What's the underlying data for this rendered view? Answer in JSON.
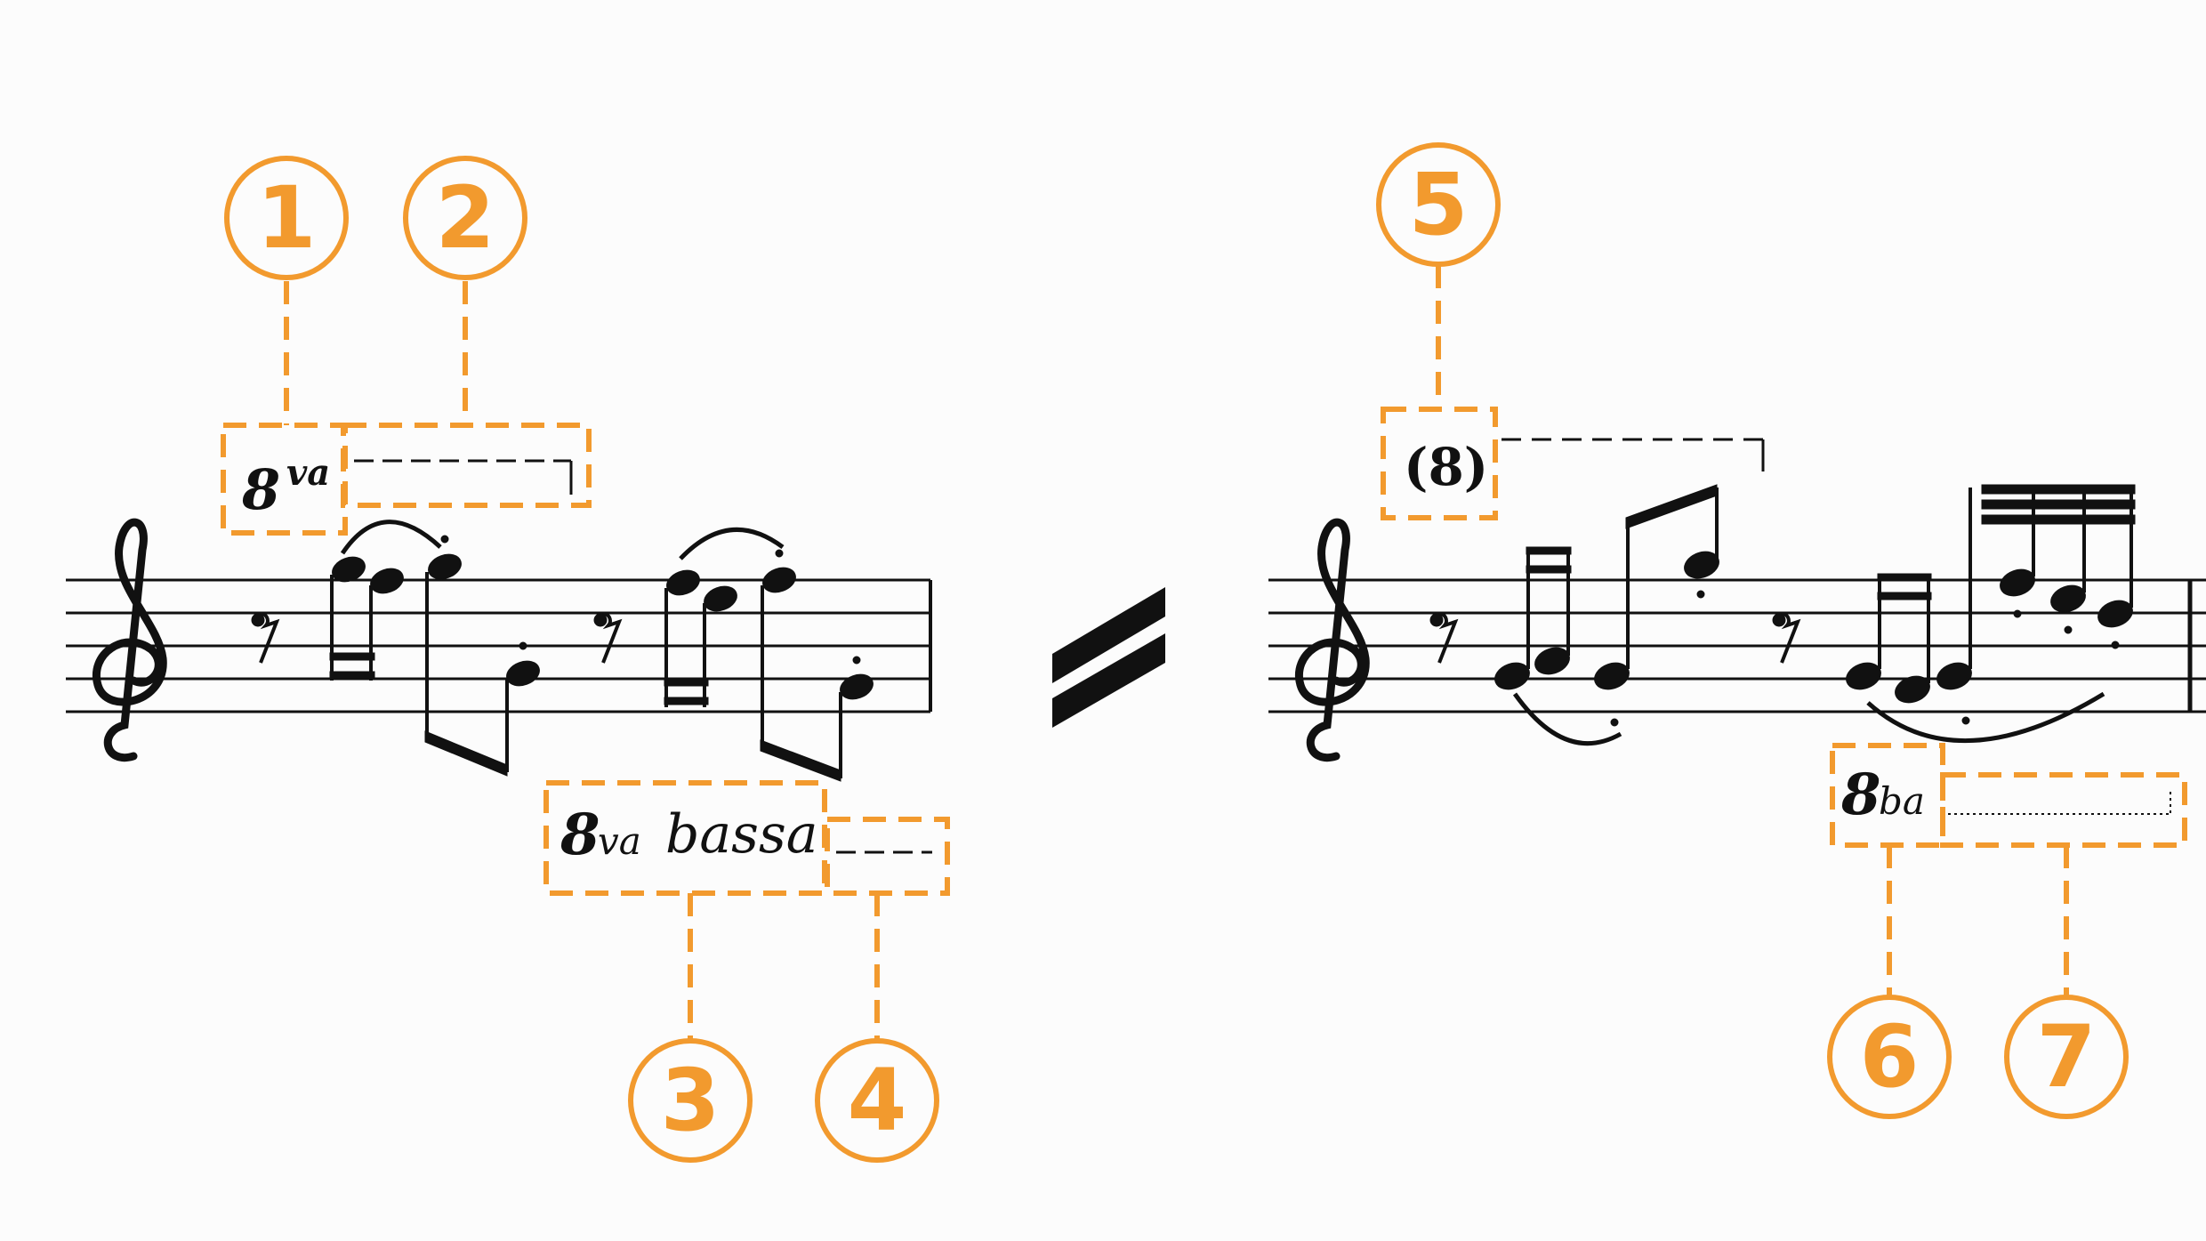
{
  "accent_color": "#f29a2e",
  "ink_color": "#111111",
  "callouts": [
    "1",
    "2",
    "3",
    "4",
    "5",
    "6",
    "7"
  ],
  "octave_markings": {
    "ottava_numeral": "8",
    "ottava_suffix": "va",
    "ottava_bassa_numeral": "8",
    "ottava_bassa_suffix": "va",
    "ottava_bassa_word": "bassa",
    "parenthesized": "(8)",
    "ottava_ba_numeral": "8",
    "ottava_ba_suffix": "ba"
  },
  "equivalence_symbol": "equals-slash"
}
